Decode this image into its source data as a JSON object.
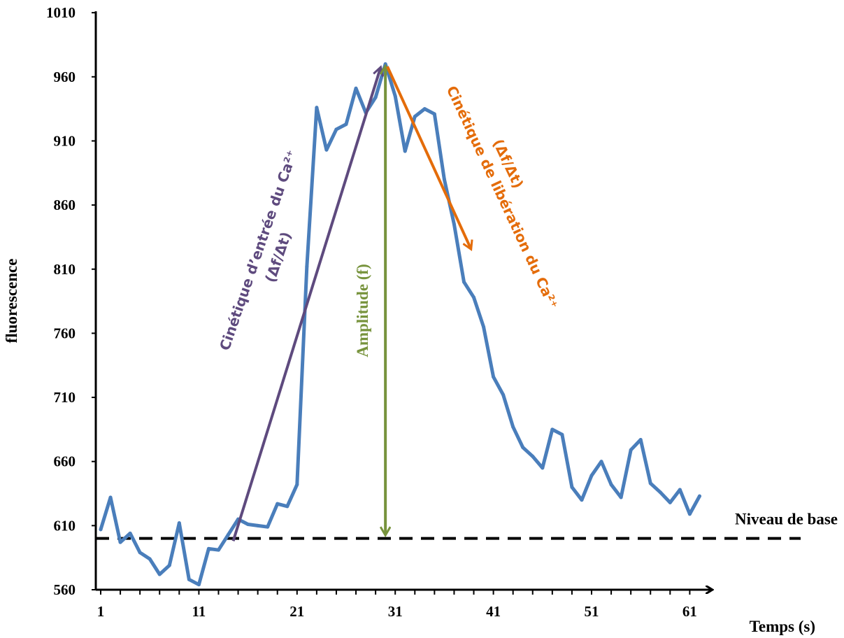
{
  "chart_data": {
    "type": "line",
    "xlabel": "Temps (s)",
    "ylabel": "fluorescence",
    "xlim": [
      1,
      62
    ],
    "ylim": [
      560,
      1010
    ],
    "x_ticks": [
      1,
      11,
      21,
      31,
      41,
      51,
      61
    ],
    "y_ticks": [
      560,
      610,
      660,
      710,
      760,
      810,
      860,
      910,
      960,
      1010
    ],
    "grid": false,
    "legend": "none",
    "series": [
      {
        "color": "#4a7ebb",
        "x": [
          1,
          2,
          3,
          4,
          5,
          6,
          7,
          8,
          9,
          10,
          11,
          12,
          13,
          14,
          15,
          16,
          17,
          18,
          19,
          20,
          21,
          22,
          23,
          24,
          25,
          26,
          27,
          28,
          29,
          30,
          31,
          32,
          33,
          34,
          35,
          36,
          37,
          38,
          39,
          40,
          41,
          42,
          43,
          44,
          45,
          46,
          47,
          48,
          49,
          50,
          51,
          52,
          53,
          54,
          55,
          56,
          57,
          58,
          59,
          60,
          61,
          62
        ],
        "values": [
          607,
          632,
          597,
          604,
          589,
          584,
          572,
          579,
          612,
          568,
          564,
          592,
          591,
          603,
          615,
          611,
          610,
          609,
          627,
          625,
          642,
          812,
          936,
          903,
          919,
          923,
          951,
          932,
          944,
          970,
          945,
          902,
          929,
          935,
          931,
          880,
          845,
          800,
          788,
          765,
          726,
          712,
          687,
          671,
          664,
          655,
          685,
          681,
          640,
          630,
          649,
          660,
          642,
          632,
          669,
          677,
          643,
          636,
          628,
          638,
          619,
          633
        ]
      }
    ],
    "annotations": {
      "baseline": {
        "label": "Niveau de base",
        "y": 600
      },
      "entry_kinetics": {
        "line1": "Cinétique d’entrée du Ca²⁺",
        "line2": "(Δf/Δt)",
        "color": "#5e4a7e",
        "from": [
          14.5,
          598
        ],
        "to": [
          29.5,
          967
        ]
      },
      "amplitude": {
        "label": "Amplitude (f)",
        "color": "#77933c",
        "x": 30,
        "y_from": 603,
        "y_to": 968
      },
      "release_kinetics": {
        "line1": "Cinétique de libération du Ca²⁺",
        "line2": "(Δf/Δt)",
        "color": "#e46c0a",
        "from": [
          30.2,
          968
        ],
        "to": [
          38.7,
          826
        ]
      }
    }
  }
}
